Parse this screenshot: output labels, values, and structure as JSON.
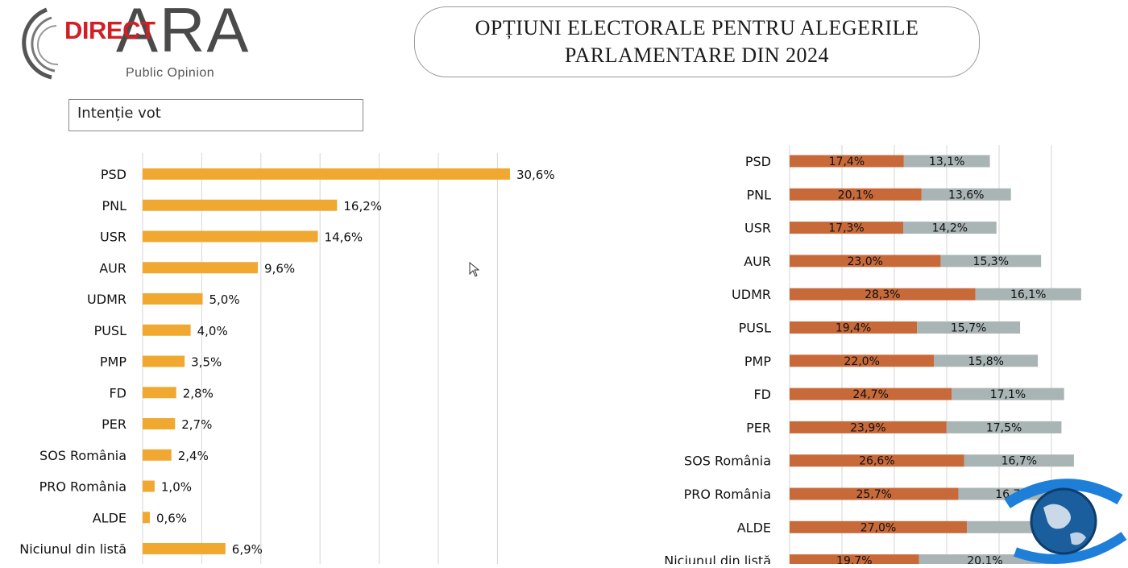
{
  "header": {
    "logo_direct": "DIRECT",
    "logo_ara": "ARA",
    "logo_sub": "Public Opinion",
    "title_line1": "OPȚIUNI ELECTORALE PENTRU ALEGERILE",
    "title_line2": "PARLAMENTARE DIN 2024"
  },
  "colors": {
    "bar_main": "#f0a830",
    "bar_left_segment": "#c8693a",
    "bar_right_segment": "#a9b4b4",
    "grid": "#d6d6d6"
  },
  "chart_data": [
    {
      "type": "bar",
      "orientation": "horizontal",
      "title": "Intenție vot",
      "categories": [
        "PSD",
        "PNL",
        "USR",
        "AUR",
        "UDMR",
        "PUSL",
        "PMP",
        "FD",
        "PER",
        "SOS România",
        "PRO România",
        "ALDE",
        "Niciunul din listă"
      ],
      "values": [
        30.6,
        16.2,
        14.6,
        9.6,
        5.0,
        4.0,
        3.5,
        2.8,
        2.7,
        2.4,
        1.0,
        0.6,
        6.9
      ],
      "value_labels": [
        "30,6%",
        "16,2%",
        "14,6%",
        "9,6%",
        "5,0%",
        "4,0%",
        "3,5%",
        "2,8%",
        "2,7%",
        "2,4%",
        "1,0%",
        "0,6%",
        "6,9%"
      ],
      "xlim": [
        0,
        35
      ],
      "grid": true
    },
    {
      "type": "bar",
      "orientation": "horizontal",
      "stacked": true,
      "categories": [
        "PSD",
        "PNL",
        "USR",
        "AUR",
        "UDMR",
        "PUSL",
        "PMP",
        "FD",
        "PER",
        "SOS România",
        "PRO România",
        "ALDE",
        "Niciunul din listă"
      ],
      "series": [
        {
          "values": [
            17.4,
            20.1,
            17.3,
            23.0,
            28.3,
            19.4,
            22.0,
            24.7,
            23.9,
            26.6,
            25.7,
            27.0,
            19.7
          ],
          "labels": [
            "17,4%",
            "20,1%",
            "17,3%",
            "23,0%",
            "28,3%",
            "19,4%",
            "22,0%",
            "24,7%",
            "23,9%",
            "26,6%",
            "25,7%",
            "27,0%",
            "19,7%"
          ]
        },
        {
          "values": [
            13.1,
            13.6,
            14.2,
            15.3,
            16.1,
            15.7,
            15.8,
            17.1,
            17.5,
            16.7,
            16.7,
            null,
            20.1
          ],
          "labels": [
            "13,1%",
            "13,6%",
            "14,2%",
            "15,3%",
            "16,1%",
            "15,7%",
            "15,8%",
            "17,1%",
            "17,5%",
            "16,7%",
            "16,7%",
            "",
            "20,1%"
          ]
        }
      ],
      "grid": true
    }
  ]
}
